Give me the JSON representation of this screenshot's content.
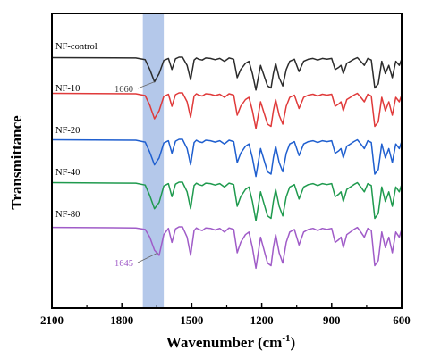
{
  "chart_data": {
    "type": "line",
    "title": "",
    "xlabel": "Wavenumber (cm",
    "xlabel_sup": "-1",
    "xlabel_close": ")",
    "ylabel": "Transmittance",
    "xlim": [
      2100,
      600
    ],
    "x_reversed": true,
    "x_ticks": [
      "2100",
      "1800",
      "1500",
      "1200",
      "900",
      "600"
    ],
    "x_tick_values": [
      2100,
      1800,
      1500,
      1200,
      900,
      600
    ],
    "highlight_band": {
      "from": 1710,
      "to": 1620,
      "color": "#b4c8ea"
    },
    "annotations": [
      {
        "text": "1660",
        "x": 1660,
        "series": "NF-control",
        "color": "#444444"
      },
      {
        "text": "1645",
        "x": 1645,
        "series": "NF-80",
        "color": "#a05cc8"
      }
    ],
    "series": [
      {
        "name": "NF-control",
        "color": "#2b2b2b",
        "x": [
          2100,
          1740,
          1700,
          1680,
          1660,
          1640,
          1620,
          1600,
          1585,
          1570,
          1555,
          1540,
          1520,
          1505,
          1490,
          1480,
          1470,
          1455,
          1440,
          1420,
          1400,
          1380,
          1360,
          1340,
          1320,
          1305,
          1290,
          1270,
          1255,
          1240,
          1225,
          1205,
          1190,
          1175,
          1160,
          1150,
          1140,
          1125,
          1110,
          1095,
          1080,
          1060,
          1040,
          1020,
          1000,
          980,
          960,
          940,
          920,
          900,
          885,
          870,
          860,
          850,
          835,
          820,
          805,
          790,
          775,
          760,
          745,
          730,
          715,
          700,
          685,
          670,
          655,
          640,
          625,
          610,
          600
        ],
        "y": [
          0.99,
          0.98,
          0.94,
          0.7,
          0.4,
          0.6,
          0.92,
          0.97,
          0.7,
          0.96,
          1.0,
          1.0,
          0.8,
          0.45,
          0.93,
          0.98,
          0.95,
          0.93,
          0.98,
          0.97,
          0.94,
          0.97,
          0.9,
          0.98,
          0.95,
          0.5,
          0.7,
          0.85,
          0.9,
          0.6,
          0.2,
          0.8,
          0.55,
          0.3,
          0.25,
          0.6,
          0.85,
          0.5,
          0.3,
          0.7,
          0.9,
          0.95,
          0.65,
          0.9,
          0.95,
          0.97,
          0.93,
          0.97,
          0.95,
          0.97,
          0.7,
          0.75,
          0.8,
          0.6,
          0.85,
          0.9,
          0.95,
          0.99,
          0.9,
          0.8,
          0.97,
          0.93,
          0.25,
          0.35,
          0.9,
          0.6,
          0.8,
          0.5,
          0.9,
          0.8,
          0.95
        ]
      },
      {
        "name": "NF-10",
        "color": "#e03a3a",
        "x": [
          2100,
          1740,
          1700,
          1680,
          1660,
          1640,
          1620,
          1600,
          1585,
          1570,
          1555,
          1540,
          1520,
          1505,
          1490,
          1480,
          1470,
          1455,
          1440,
          1420,
          1400,
          1380,
          1360,
          1340,
          1320,
          1305,
          1290,
          1270,
          1255,
          1240,
          1225,
          1205,
          1190,
          1175,
          1160,
          1150,
          1140,
          1125,
          1110,
          1095,
          1080,
          1060,
          1040,
          1020,
          1000,
          980,
          960,
          940,
          920,
          900,
          885,
          870,
          860,
          850,
          835,
          820,
          805,
          790,
          775,
          760,
          745,
          730,
          715,
          700,
          685,
          670,
          655,
          640,
          625,
          610,
          600
        ],
        "y": [
          0.99,
          0.98,
          0.94,
          0.72,
          0.42,
          0.6,
          0.92,
          0.97,
          0.7,
          0.96,
          1.0,
          1.0,
          0.8,
          0.45,
          0.93,
          0.98,
          0.95,
          0.93,
          0.98,
          0.97,
          0.94,
          0.97,
          0.9,
          0.98,
          0.95,
          0.5,
          0.7,
          0.85,
          0.9,
          0.6,
          0.2,
          0.8,
          0.55,
          0.3,
          0.25,
          0.6,
          0.85,
          0.5,
          0.3,
          0.7,
          0.9,
          0.95,
          0.65,
          0.9,
          0.95,
          0.97,
          0.93,
          0.97,
          0.95,
          0.97,
          0.7,
          0.75,
          0.8,
          0.6,
          0.85,
          0.9,
          0.95,
          0.99,
          0.9,
          0.8,
          0.97,
          0.93,
          0.25,
          0.35,
          0.9,
          0.6,
          0.8,
          0.5,
          0.9,
          0.8,
          0.95
        ]
      },
      {
        "name": "NF-20",
        "color": "#1f5fcf",
        "x": [
          2100,
          1740,
          1700,
          1680,
          1660,
          1640,
          1620,
          1600,
          1585,
          1570,
          1555,
          1540,
          1520,
          1505,
          1490,
          1480,
          1470,
          1455,
          1440,
          1420,
          1400,
          1380,
          1360,
          1340,
          1320,
          1305,
          1290,
          1270,
          1255,
          1240,
          1225,
          1205,
          1190,
          1175,
          1160,
          1150,
          1140,
          1125,
          1110,
          1095,
          1080,
          1060,
          1040,
          1020,
          1000,
          980,
          960,
          940,
          920,
          900,
          885,
          870,
          860,
          850,
          835,
          820,
          805,
          790,
          775,
          760,
          745,
          730,
          715,
          700,
          685,
          670,
          655,
          640,
          625,
          610,
          600
        ],
        "y": [
          0.99,
          0.98,
          0.94,
          0.72,
          0.45,
          0.6,
          0.92,
          0.97,
          0.7,
          0.96,
          1.0,
          1.0,
          0.8,
          0.45,
          0.93,
          0.98,
          0.95,
          0.93,
          0.98,
          0.97,
          0.94,
          0.97,
          0.9,
          0.98,
          0.95,
          0.5,
          0.7,
          0.85,
          0.9,
          0.6,
          0.2,
          0.8,
          0.55,
          0.3,
          0.25,
          0.6,
          0.85,
          0.5,
          0.3,
          0.7,
          0.9,
          0.95,
          0.65,
          0.9,
          0.95,
          0.97,
          0.93,
          0.97,
          0.95,
          0.97,
          0.7,
          0.75,
          0.8,
          0.6,
          0.85,
          0.9,
          0.95,
          0.99,
          0.9,
          0.8,
          0.97,
          0.93,
          0.25,
          0.35,
          0.9,
          0.6,
          0.8,
          0.5,
          0.9,
          0.8,
          0.95
        ]
      },
      {
        "name": "NF-40",
        "color": "#1f9a4e",
        "x": [
          2100,
          1740,
          1700,
          1680,
          1660,
          1640,
          1620,
          1600,
          1585,
          1570,
          1555,
          1540,
          1520,
          1505,
          1490,
          1480,
          1470,
          1455,
          1440,
          1420,
          1400,
          1380,
          1360,
          1340,
          1320,
          1305,
          1290,
          1270,
          1255,
          1240,
          1225,
          1205,
          1190,
          1175,
          1160,
          1150,
          1140,
          1125,
          1110,
          1095,
          1080,
          1060,
          1040,
          1020,
          1000,
          980,
          960,
          940,
          920,
          900,
          885,
          870,
          860,
          850,
          835,
          820,
          805,
          790,
          775,
          760,
          745,
          730,
          715,
          700,
          685,
          670,
          655,
          640,
          625,
          610,
          600
        ],
        "y": [
          0.99,
          0.98,
          0.94,
          0.72,
          0.45,
          0.58,
          0.92,
          0.97,
          0.7,
          0.96,
          1.0,
          1.0,
          0.8,
          0.45,
          0.93,
          0.98,
          0.95,
          0.93,
          0.98,
          0.97,
          0.94,
          0.97,
          0.9,
          0.98,
          0.95,
          0.5,
          0.7,
          0.85,
          0.9,
          0.6,
          0.2,
          0.8,
          0.55,
          0.3,
          0.25,
          0.6,
          0.85,
          0.5,
          0.3,
          0.7,
          0.9,
          0.95,
          0.65,
          0.9,
          0.95,
          0.97,
          0.93,
          0.97,
          0.95,
          0.97,
          0.7,
          0.75,
          0.8,
          0.6,
          0.85,
          0.9,
          0.95,
          0.99,
          0.9,
          0.8,
          0.97,
          0.93,
          0.25,
          0.35,
          0.9,
          0.6,
          0.8,
          0.5,
          0.9,
          0.8,
          0.95
        ]
      },
      {
        "name": "NF-80",
        "color": "#a05cc8",
        "x": [
          2100,
          1740,
          1700,
          1680,
          1660,
          1640,
          1620,
          1600,
          1585,
          1570,
          1555,
          1540,
          1520,
          1505,
          1490,
          1480,
          1470,
          1455,
          1440,
          1420,
          1400,
          1380,
          1360,
          1340,
          1320,
          1305,
          1290,
          1270,
          1255,
          1240,
          1225,
          1205,
          1190,
          1175,
          1160,
          1150,
          1140,
          1125,
          1110,
          1095,
          1080,
          1060,
          1040,
          1020,
          1000,
          980,
          960,
          940,
          920,
          900,
          885,
          870,
          860,
          850,
          835,
          820,
          805,
          790,
          775,
          760,
          745,
          730,
          715,
          700,
          685,
          670,
          655,
          640,
          625,
          610,
          600
        ],
        "y": [
          0.99,
          0.98,
          0.95,
          0.8,
          0.55,
          0.45,
          0.85,
          0.97,
          0.7,
          0.96,
          1.0,
          1.0,
          0.8,
          0.45,
          0.93,
          0.98,
          0.95,
          0.93,
          0.98,
          0.97,
          0.94,
          0.97,
          0.9,
          0.98,
          0.95,
          0.5,
          0.7,
          0.85,
          0.9,
          0.6,
          0.2,
          0.8,
          0.55,
          0.3,
          0.25,
          0.6,
          0.85,
          0.5,
          0.3,
          0.7,
          0.9,
          0.95,
          0.65,
          0.9,
          0.95,
          0.97,
          0.93,
          0.97,
          0.95,
          0.97,
          0.7,
          0.75,
          0.8,
          0.6,
          0.85,
          0.9,
          0.95,
          0.99,
          0.9,
          0.8,
          0.97,
          0.93,
          0.25,
          0.35,
          0.9,
          0.6,
          0.8,
          0.5,
          0.9,
          0.8,
          0.95
        ]
      }
    ]
  }
}
